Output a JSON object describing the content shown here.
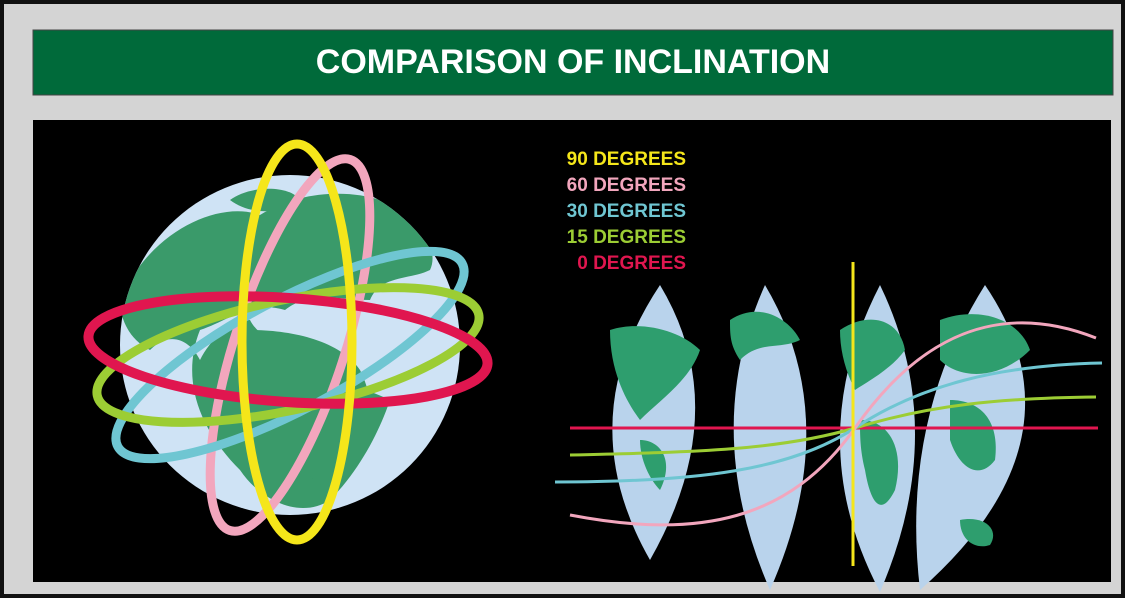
{
  "header": {
    "title": "COMPARISON OF INCLINATION"
  },
  "legend": [
    {
      "label": "90 DEGREES",
      "color": "#f5e61a"
    },
    {
      "label": "60 DEGREES",
      "color": "#f2a6bd"
    },
    {
      "label": "30 DEGREES",
      "color": "#6fc6d2"
    },
    {
      "label": "15 DEGREES",
      "color": "#9ccd34"
    },
    {
      "label": "0 DEGREES",
      "color": "#e0164f"
    }
  ]
}
